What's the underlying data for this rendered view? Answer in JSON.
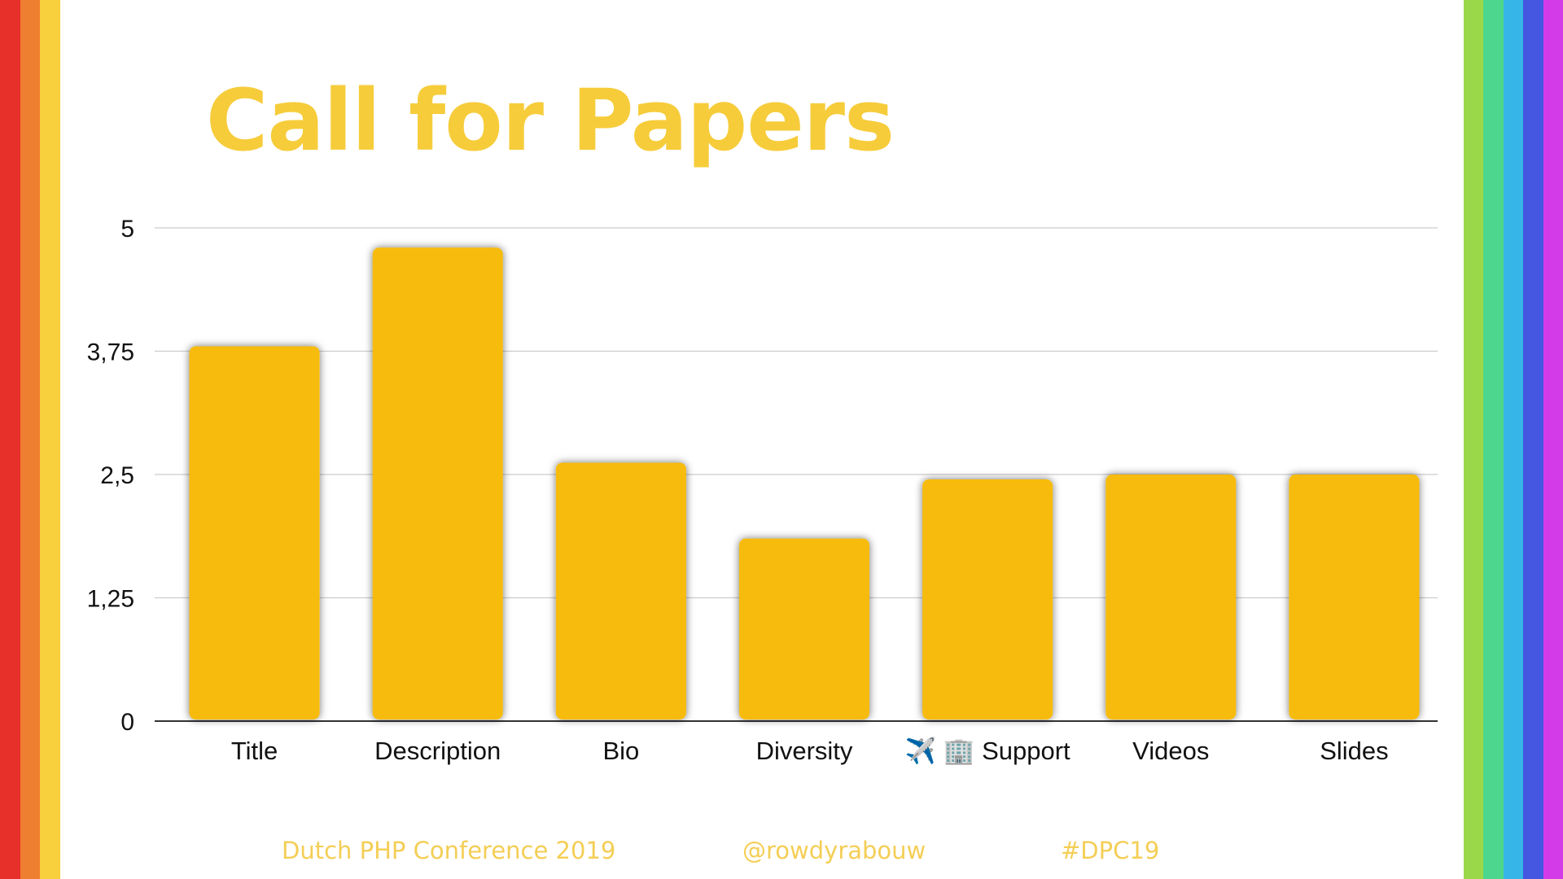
{
  "slide": {
    "title": "Call for Papers",
    "footer": {
      "conference": "Dutch PHP Conference 2019",
      "handle": "@rowdyrabouw",
      "hashtag": "#DPC19"
    }
  },
  "colors": {
    "bar": "#f7bb07",
    "title": "#f6cc3a",
    "footer": "#f4ce55",
    "grid": "#cccccc",
    "axis": "#333333",
    "stripes_left": [
      "#e8302a",
      "#ef7f30",
      "#f8cf3c"
    ],
    "stripes_right": [
      "#9ad84a",
      "#4dd68e",
      "#35b5e8",
      "#4556e0",
      "#d43be8"
    ]
  },
  "chart_data": {
    "type": "bar",
    "categories": [
      "Title",
      "Description",
      "Bio",
      "Diversity",
      "✈️ 🏢 Support",
      "Videos",
      "Slides"
    ],
    "values": [
      3.8,
      4.8,
      2.62,
      1.85,
      2.45,
      2.5,
      2.5
    ],
    "ylim": [
      0,
      5
    ],
    "yticks": [
      "0",
      "1,25",
      "2,5",
      "3,75",
      "5"
    ],
    "ytick_values": [
      0,
      1.25,
      2.5,
      3.75,
      5
    ],
    "grid": true,
    "title": "",
    "xlabel": "",
    "ylabel": ""
  }
}
